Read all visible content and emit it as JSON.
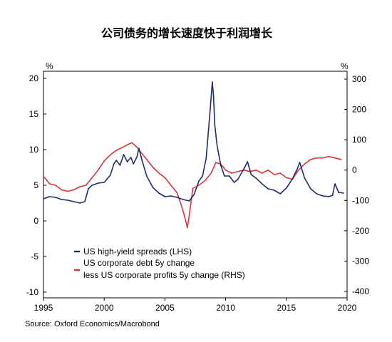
{
  "chart_data": {
    "type": "line",
    "title": "公司债务的增长速度快于利润增长",
    "left_unit": "%",
    "right_unit": "%",
    "source": "Source: Oxford Economics/Macrobond",
    "ylim_left": [
      -10,
      20
    ],
    "ylim_right": [
      -400,
      300
    ],
    "xlim": [
      1995,
      2020
    ],
    "x_ticks": [
      "1995",
      "2000",
      "2005",
      "2010",
      "2015",
      "2020"
    ],
    "left_ticks": [
      "20",
      "15",
      "10",
      "5",
      "0",
      "-5",
      "-10"
    ],
    "right_ticks": [
      "300",
      "200",
      "100",
      "0",
      "-100",
      "-200",
      "-300",
      "-400"
    ],
    "grid": false,
    "legend_position": "bottom-left",
    "colors": {
      "lhs": "#1f2d6b",
      "rhs": "#d9353b"
    },
    "legend": [
      {
        "line1": "US high-yield spreads (LHS)",
        "line2": ""
      },
      {
        "line1": "US corporate debt 5y change",
        "line2": "less US corporate profits 5y change (RHS)"
      }
    ],
    "series": [
      {
        "name": "US high-yield spreads (LHS)",
        "axis": "left",
        "x": [
          1995.0,
          1995.5,
          1996.0,
          1996.5,
          1997.0,
          1997.5,
          1998.0,
          1998.4,
          1998.7,
          1999.0,
          1999.5,
          2000.0,
          2000.5,
          2000.8,
          2001.0,
          2001.3,
          2001.6,
          2001.9,
          2002.2,
          2002.4,
          2002.7,
          2002.85,
          2003.1,
          2003.5,
          2004.0,
          2004.5,
          2005.0,
          2005.5,
          2006.0,
          2006.5,
          2007.0,
          2007.4,
          2007.8,
          2008.1,
          2008.4,
          2008.7,
          2008.9,
          2009.0,
          2009.1,
          2009.3,
          2009.6,
          2009.9,
          2010.3,
          2010.7,
          2011.0,
          2011.5,
          2011.8,
          2012.1,
          2012.5,
          2013.0,
          2013.5,
          2014.0,
          2014.5,
          2015.0,
          2015.5,
          2015.9,
          2016.1,
          2016.5,
          2017.0,
          2017.5,
          2018.0,
          2018.5,
          2018.8,
          2019.0,
          2019.3,
          2019.7
        ],
        "values": [
          3.1,
          3.4,
          3.3,
          3.0,
          2.9,
          2.7,
          2.5,
          2.7,
          4.5,
          5.0,
          5.3,
          5.4,
          6.4,
          8.0,
          8.5,
          7.8,
          9.3,
          8.3,
          8.9,
          8.0,
          9.0,
          10.2,
          8.6,
          6.3,
          4.7,
          3.9,
          3.4,
          3.5,
          3.3,
          3.0,
          2.8,
          3.7,
          5.6,
          6.3,
          8.8,
          15.0,
          19.5,
          17.5,
          13.5,
          10.5,
          7.8,
          6.3,
          6.3,
          5.4,
          5.8,
          7.3,
          8.3,
          6.5,
          6.0,
          5.2,
          4.5,
          4.3,
          3.8,
          4.6,
          5.9,
          7.3,
          8.2,
          6.0,
          4.5,
          3.8,
          3.5,
          3.4,
          3.6,
          5.2,
          4.0,
          3.9
        ]
      },
      {
        "name": "US corporate debt 5y change less US corporate profits 5y change (RHS)",
        "axis": "right",
        "x": [
          1995.0,
          1995.5,
          1996.0,
          1996.5,
          1997.0,
          1997.5,
          1998.0,
          1998.5,
          1999.0,
          1999.5,
          2000.0,
          2000.5,
          2001.0,
          2001.5,
          2002.0,
          2002.3,
          2002.7,
          2003.0,
          2003.5,
          2004.0,
          2004.5,
          2005.0,
          2005.5,
          2006.0,
          2006.3,
          2006.6,
          2006.85,
          2007.0,
          2007.3,
          2007.8,
          2008.3,
          2008.8,
          2009.2,
          2009.6,
          2010.0,
          2010.5,
          2011.0,
          2011.5,
          2012.0,
          2012.5,
          2013.0,
          2013.5,
          2014.0,
          2014.5,
          2015.0,
          2015.5,
          2016.0,
          2016.5,
          2017.0,
          2017.5,
          2018.0,
          2018.5,
          2019.0,
          2019.5
        ],
        "values": [
          -20,
          -45,
          -50,
          -65,
          -70,
          -65,
          -55,
          -50,
          -25,
          0,
          30,
          50,
          65,
          75,
          85,
          90,
          75,
          60,
          35,
          10,
          -10,
          -25,
          -50,
          -75,
          -110,
          -150,
          -190,
          -150,
          -60,
          -50,
          -35,
          -10,
          25,
          20,
          0,
          -10,
          -5,
          0,
          -5,
          0,
          -10,
          0,
          -15,
          -10,
          -25,
          -30,
          0,
          20,
          35,
          40,
          40,
          45,
          40,
          35
        ]
      }
    ]
  }
}
